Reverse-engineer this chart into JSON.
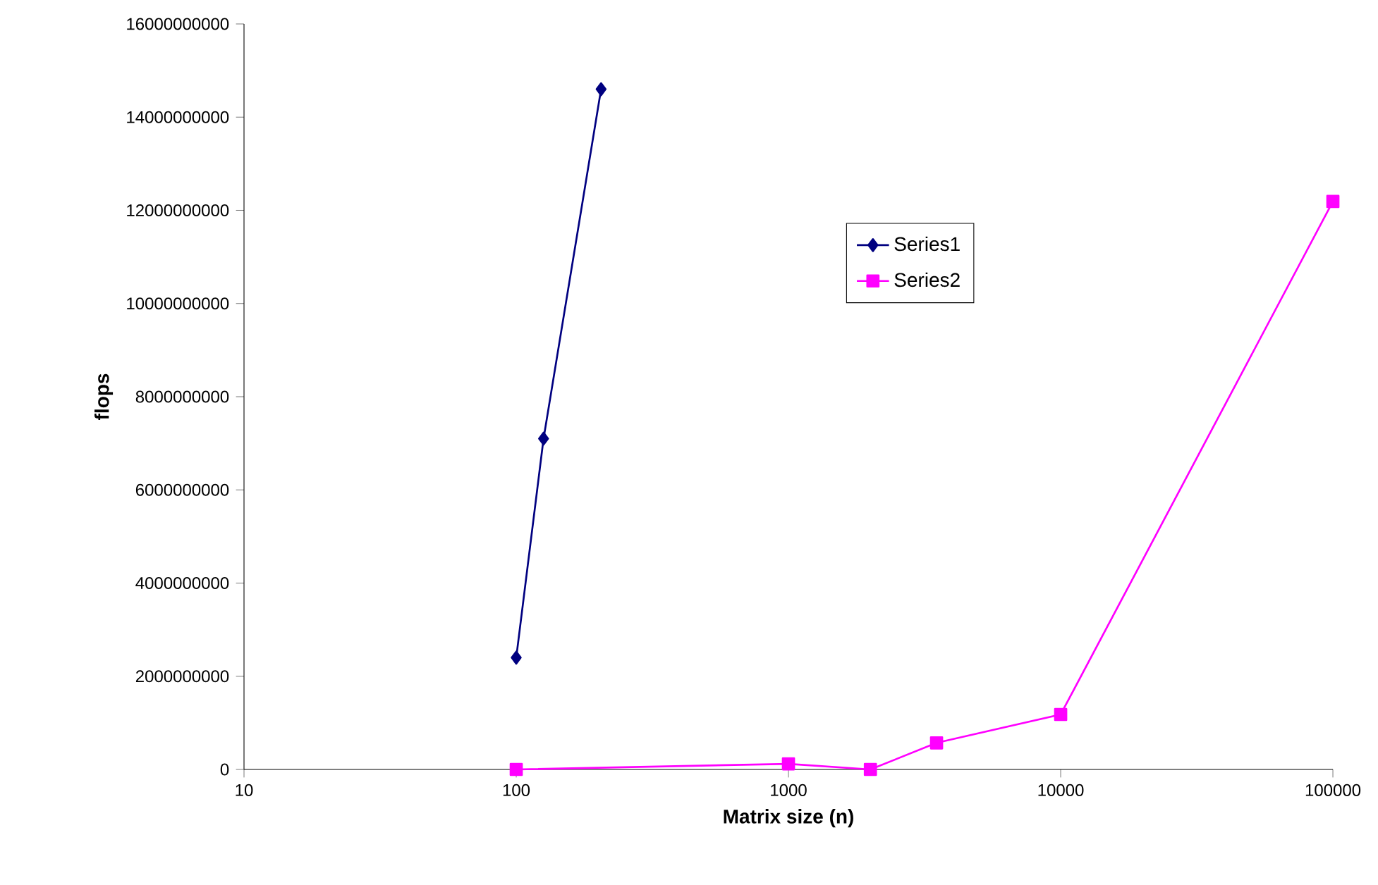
{
  "chart_data": {
    "type": "line",
    "xlabel": "Matrix size (n)",
    "ylabel": "flops",
    "log": "x",
    "xlim": [
      10,
      100000
    ],
    "xticks": [
      10,
      100,
      1000,
      10000,
      100000
    ],
    "ylim": [
      0,
      16000000000
    ],
    "yticks": [
      0,
      2000000000,
      4000000000,
      6000000000,
      8000000000,
      10000000000,
      12000000000,
      14000000000,
      16000000000
    ],
    "grid": false,
    "legend": "right",
    "line_style": "solid",
    "series": [
      {
        "name": "Series1",
        "color": "#000080",
        "marker": "diamond",
        "x": [
          100,
          126,
          205
        ],
        "values": [
          2400000000,
          7100000000,
          14600000000
        ]
      },
      {
        "name": "Series2",
        "color": "#ff00ff",
        "marker": "square",
        "x": [
          100,
          1000,
          2000,
          3500,
          10000,
          100000
        ],
        "values": [
          0,
          120000000,
          0,
          570000000,
          1180000000,
          12190000000
        ]
      }
    ]
  }
}
